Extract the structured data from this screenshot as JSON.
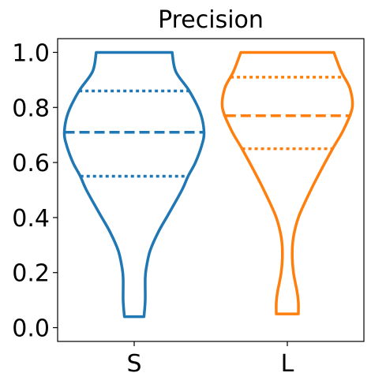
{
  "chart_data": {
    "type": "violin",
    "title": "Precision",
    "xlabel": "",
    "ylabel": "",
    "categories": [
      "S",
      "L"
    ],
    "ylim": [
      -0.05,
      1.05
    ],
    "yticks": [
      "0.0",
      "0.2",
      "0.4",
      "0.6",
      "0.8",
      "1.0"
    ],
    "grid": false,
    "series": [
      {
        "category": "S",
        "color": "#1f77b4",
        "min": 0.04,
        "max": 1.0,
        "quartiles": {
          "q1": 0.55,
          "median": 0.71,
          "q3": 0.86
        },
        "profile": [
          [
            0.04,
            0.08
          ],
          [
            0.1,
            0.09
          ],
          [
            0.18,
            0.09
          ],
          [
            0.22,
            0.1
          ],
          [
            0.28,
            0.13
          ],
          [
            0.35,
            0.2
          ],
          [
            0.42,
            0.29
          ],
          [
            0.5,
            0.39
          ],
          [
            0.55,
            0.44
          ],
          [
            0.6,
            0.5
          ],
          [
            0.66,
            0.55
          ],
          [
            0.71,
            0.57
          ],
          [
            0.78,
            0.54
          ],
          [
            0.86,
            0.45
          ],
          [
            0.93,
            0.34
          ],
          [
            1.0,
            0.31
          ]
        ]
      },
      {
        "category": "L",
        "color": "#ff7f0e",
        "min": 0.05,
        "max": 1.0,
        "quartiles": {
          "q1": 0.65,
          "median": 0.77,
          "q3": 0.91
        },
        "profile": [
          [
            0.05,
            0.09
          ],
          [
            0.09,
            0.09
          ],
          [
            0.13,
            0.08
          ],
          [
            0.2,
            0.05
          ],
          [
            0.27,
            0.04
          ],
          [
            0.33,
            0.05
          ],
          [
            0.4,
            0.09
          ],
          [
            0.48,
            0.17
          ],
          [
            0.56,
            0.26
          ],
          [
            0.65,
            0.37
          ],
          [
            0.72,
            0.46
          ],
          [
            0.8,
            0.53
          ],
          [
            0.87,
            0.51
          ],
          [
            0.93,
            0.44
          ],
          [
            1.0,
            0.38
          ]
        ]
      }
    ]
  }
}
